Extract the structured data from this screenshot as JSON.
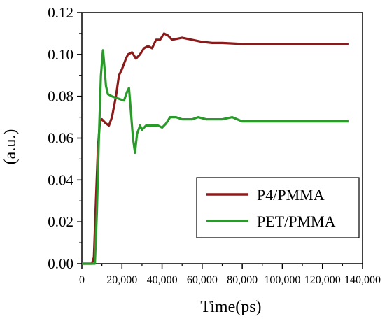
{
  "chart_data": {
    "type": "line",
    "title": "",
    "xlabel": "Time(ps)",
    "ylabel": "(a.u.)",
    "xlim": [
      0,
      140000
    ],
    "ylim": [
      0,
      0.12
    ],
    "x_ticks": [
      0,
      20000,
      40000,
      60000,
      80000,
      100000,
      120000,
      140000
    ],
    "x_tick_labels": [
      "0",
      "20,000",
      "40,000",
      "60,000",
      "80,000",
      "100,000",
      "120,000",
      "140,000"
    ],
    "y_ticks": [
      0,
      0.02,
      0.04,
      0.06,
      0.08,
      0.1,
      0.12
    ],
    "y_tick_labels": [
      "0.00",
      "0.02",
      "0.04",
      "0.06",
      "0.08",
      "0.10",
      "0.12"
    ],
    "grid": false,
    "legend_position": "bottom-right",
    "series": [
      {
        "name": "P4/PMMA",
        "color": "#8b1a1a",
        "points": [
          [
            0,
            0
          ],
          [
            5000,
            0
          ],
          [
            6000,
            0.003
          ],
          [
            7000,
            0.03
          ],
          [
            8000,
            0.055
          ],
          [
            9000,
            0.068
          ],
          [
            10000,
            0.069
          ],
          [
            12000,
            0.067
          ],
          [
            13500,
            0.066
          ],
          [
            15000,
            0.07
          ],
          [
            17000,
            0.08
          ],
          [
            18500,
            0.09
          ],
          [
            20000,
            0.093
          ],
          [
            22000,
            0.098
          ],
          [
            23000,
            0.1
          ],
          [
            25000,
            0.101
          ],
          [
            27000,
            0.098
          ],
          [
            29000,
            0.1
          ],
          [
            31000,
            0.103
          ],
          [
            33000,
            0.104
          ],
          [
            35000,
            0.103
          ],
          [
            37000,
            0.107
          ],
          [
            39000,
            0.107
          ],
          [
            41000,
            0.11
          ],
          [
            43000,
            0.109
          ],
          [
            45000,
            0.107
          ],
          [
            50000,
            0.108
          ],
          [
            55000,
            0.107
          ],
          [
            60000,
            0.106
          ],
          [
            65000,
            0.1055
          ],
          [
            70000,
            0.1055
          ],
          [
            80000,
            0.105
          ],
          [
            90000,
            0.105
          ],
          [
            100000,
            0.105
          ],
          [
            110000,
            0.105
          ],
          [
            120000,
            0.105
          ],
          [
            133000,
            0.105
          ]
        ]
      },
      {
        "name": "PET/PMMA",
        "color": "#2a9a2a",
        "points": [
          [
            0,
            0
          ],
          [
            6500,
            0
          ],
          [
            7500,
            0.025
          ],
          [
            8500,
            0.06
          ],
          [
            9500,
            0.09
          ],
          [
            10500,
            0.102
          ],
          [
            11000,
            0.097
          ],
          [
            12000,
            0.085
          ],
          [
            13000,
            0.081
          ],
          [
            15000,
            0.08
          ],
          [
            18000,
            0.079
          ],
          [
            21000,
            0.078
          ],
          [
            22500,
            0.082
          ],
          [
            23500,
            0.084
          ],
          [
            24500,
            0.072
          ],
          [
            25500,
            0.06
          ],
          [
            26500,
            0.053
          ],
          [
            27500,
            0.062
          ],
          [
            29000,
            0.066
          ],
          [
            30000,
            0.064
          ],
          [
            32000,
            0.066
          ],
          [
            35000,
            0.066
          ],
          [
            38000,
            0.066
          ],
          [
            40000,
            0.065
          ],
          [
            42000,
            0.067
          ],
          [
            44000,
            0.07
          ],
          [
            47000,
            0.07
          ],
          [
            50000,
            0.069
          ],
          [
            55000,
            0.069
          ],
          [
            58000,
            0.07
          ],
          [
            62000,
            0.069
          ],
          [
            70000,
            0.069
          ],
          [
            75000,
            0.07
          ],
          [
            80000,
            0.068
          ],
          [
            90000,
            0.068
          ],
          [
            100000,
            0.068
          ],
          [
            110000,
            0.068
          ],
          [
            120000,
            0.068
          ],
          [
            133000,
            0.068
          ]
        ]
      }
    ]
  }
}
